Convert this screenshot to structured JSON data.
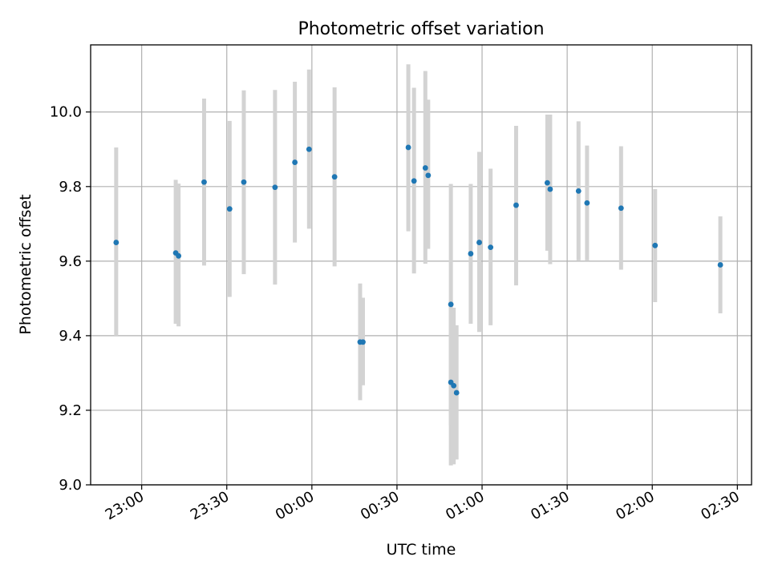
{
  "chart_data": {
    "type": "scatter",
    "title": "Photometric offset variation",
    "xlabel": "UTC time",
    "ylabel": "Photometric offset",
    "x_unit": "UTC time (HH:MM)",
    "xlim": [
      "22:42",
      "02:35"
    ],
    "ylim": [
      9.0,
      10.18
    ],
    "x_ticks": [
      "23:00",
      "23:30",
      "00:00",
      "00:30",
      "01:00",
      "01:30",
      "02:00",
      "02:30"
    ],
    "y_ticks": [
      "9.0",
      "9.2",
      "9.4",
      "9.6",
      "9.8",
      "10.0"
    ],
    "grid": true,
    "errorbar_color": "#d3d3d3",
    "marker_color": "#1f77b4",
    "points": [
      {
        "t": "22:51",
        "y": 9.65,
        "ylow": 9.4,
        "yhigh": 9.905
      },
      {
        "t": "23:12",
        "y": 9.622,
        "ylow": 9.432,
        "yhigh": 9.818
      },
      {
        "t": "23:13",
        "y": 9.614,
        "ylow": 9.425,
        "yhigh": 9.808
      },
      {
        "t": "23:22",
        "y": 9.812,
        "ylow": 9.588,
        "yhigh": 10.036
      },
      {
        "t": "23:31",
        "y": 9.74,
        "ylow": 9.504,
        "yhigh": 9.976
      },
      {
        "t": "23:36",
        "y": 9.812,
        "ylow": 9.565,
        "yhigh": 10.058
      },
      {
        "t": "23:47",
        "y": 9.798,
        "ylow": 9.537,
        "yhigh": 10.059
      },
      {
        "t": "23:54",
        "y": 9.865,
        "ylow": 9.65,
        "yhigh": 10.081
      },
      {
        "t": "23:59",
        "y": 9.9,
        "ylow": 9.687,
        "yhigh": 10.114
      },
      {
        "t": "00:08",
        "y": 9.826,
        "ylow": 9.586,
        "yhigh": 10.066
      },
      {
        "t": "00:17",
        "y": 9.383,
        "ylow": 9.227,
        "yhigh": 9.54
      },
      {
        "t": "00:18",
        "y": 9.383,
        "ylow": 9.267,
        "yhigh": 9.502
      },
      {
        "t": "00:34",
        "y": 9.905,
        "ylow": 9.68,
        "yhigh": 10.128
      },
      {
        "t": "00:36",
        "y": 9.815,
        "ylow": 9.567,
        "yhigh": 10.065
      },
      {
        "t": "00:40",
        "y": 9.85,
        "ylow": 9.593,
        "yhigh": 10.11
      },
      {
        "t": "00:41",
        "y": 9.83,
        "ylow": 9.633,
        "yhigh": 10.033
      },
      {
        "t": "00:49",
        "y": 9.484,
        "ylow": 9.16,
        "yhigh": 9.807
      },
      {
        "t": "00:49",
        "y": 9.275,
        "ylow": 9.052,
        "yhigh": 9.495
      },
      {
        "t": "00:50",
        "y": 9.266,
        "ylow": 9.055,
        "yhigh": 9.475
      },
      {
        "t": "00:51",
        "y": 9.247,
        "ylow": 9.068,
        "yhigh": 9.428
      },
      {
        "t": "00:56",
        "y": 9.62,
        "ylow": 9.432,
        "yhigh": 9.807
      },
      {
        "t": "00:59",
        "y": 9.65,
        "ylow": 9.41,
        "yhigh": 9.893
      },
      {
        "t": "01:03",
        "y": 9.637,
        "ylow": 9.428,
        "yhigh": 9.848
      },
      {
        "t": "01:12",
        "y": 9.75,
        "ylow": 9.535,
        "yhigh": 9.963
      },
      {
        "t": "01:23",
        "y": 9.81,
        "ylow": 9.628,
        "yhigh": 9.993
      },
      {
        "t": "01:24",
        "y": 9.793,
        "ylow": 9.592,
        "yhigh": 9.993
      },
      {
        "t": "01:34",
        "y": 9.788,
        "ylow": 9.602,
        "yhigh": 9.975
      },
      {
        "t": "01:37",
        "y": 9.756,
        "ylow": 9.602,
        "yhigh": 9.91
      },
      {
        "t": "01:49",
        "y": 9.742,
        "ylow": 9.577,
        "yhigh": 9.908
      },
      {
        "t": "02:01",
        "y": 9.642,
        "ylow": 9.49,
        "yhigh": 9.793
      },
      {
        "t": "02:24",
        "y": 9.59,
        "ylow": 9.46,
        "yhigh": 9.72
      }
    ]
  }
}
